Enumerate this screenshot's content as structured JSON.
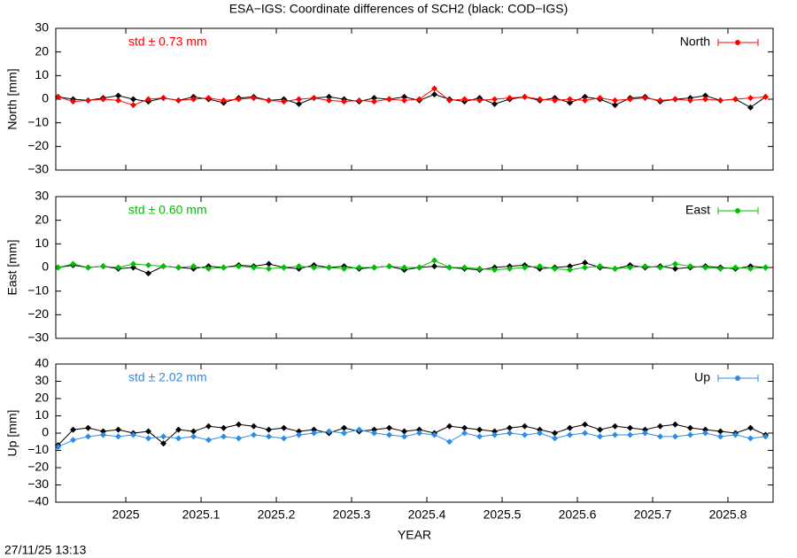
{
  "footer": "27/11/25 13:13",
  "chart_data": [
    {
      "type": "scatter",
      "title": "ESA−IGS: Coordinate differences of SCH2 (black: COD−IGS)",
      "ylabel": "North [mm]",
      "annotation": "std ± 0.73 mm",
      "legend": "upper right",
      "xlim": [
        2024.907,
        2025.86
      ],
      "ylim": [
        -30,
        30
      ],
      "yticks": [
        {
          "value": -30,
          "label": "−30"
        },
        {
          "value": -20,
          "label": "−20"
        },
        {
          "value": -10,
          "label": "−10"
        },
        0,
        10,
        20,
        30
      ],
      "x": [
        2024.91,
        2024.93,
        2024.95,
        2024.97,
        2024.99,
        2025.01,
        2025.03,
        2025.05,
        2025.07,
        2025.09,
        2025.11,
        2025.13,
        2025.15,
        2025.17,
        2025.19,
        2025.21,
        2025.23,
        2025.25,
        2025.27,
        2025.29,
        2025.31,
        2025.33,
        2025.35,
        2025.37,
        2025.39,
        2025.41,
        2025.43,
        2025.45,
        2025.47,
        2025.49,
        2025.51,
        2025.53,
        2025.55,
        2025.57,
        2025.59,
        2025.61,
        2025.63,
        2025.65,
        2025.67,
        2025.69,
        2025.71,
        2025.73,
        2025.75,
        2025.77,
        2025.79,
        2025.81,
        2025.83,
        2025.85
      ],
      "series": [
        {
          "color": "#000000",
          "values": [
            1,
            0,
            -0.5,
            0.5,
            1.5,
            0,
            -1,
            0.5,
            -0.5,
            1,
            0,
            -1.5,
            0.5,
            1,
            -0.5,
            0,
            -2,
            0.5,
            1,
            0,
            -1,
            0.5,
            0,
            1,
            -0.5,
            2,
            0,
            -1,
            0.5,
            -2,
            0,
            1,
            -0.5,
            0.5,
            -1.5,
            1,
            0,
            -2.5,
            0.5,
            1,
            -1,
            0,
            0.5,
            1.5,
            -0.5,
            0,
            -3.5,
            1
          ]
        },
        {
          "name": "North",
          "color": "#ff0000",
          "values": [
            1,
            -1,
            -0.5,
            0,
            -0.5,
            -2.5,
            0,
            0.5,
            -0.5,
            0,
            0.5,
            -0.5,
            0,
            0.5,
            -0.5,
            -1,
            0,
            0.5,
            -0.5,
            -1,
            -0.5,
            -1,
            0,
            -0.5,
            0,
            4.5,
            -0.5,
            0,
            -0.5,
            0,
            0.5,
            1,
            0,
            -0.5,
            0,
            -0.5,
            0.5,
            -0.5,
            0,
            0.5,
            -0.5,
            0,
            -0.5,
            0,
            -0.5,
            0,
            0.5,
            1
          ]
        }
      ]
    },
    {
      "type": "scatter",
      "ylabel": "East [mm]",
      "annotation": "std ± 0.60 mm",
      "legend": "upper right",
      "xlim": [
        2024.907,
        2025.86
      ],
      "ylim": [
        -30,
        30
      ],
      "yticks": [
        {
          "value": -30,
          "label": "−30"
        },
        {
          "value": -20,
          "label": "−20"
        },
        {
          "value": -10,
          "label": "−10"
        },
        0,
        10,
        20,
        30
      ],
      "x": [
        2024.91,
        2024.93,
        2024.95,
        2024.97,
        2024.99,
        2025.01,
        2025.03,
        2025.05,
        2025.07,
        2025.09,
        2025.11,
        2025.13,
        2025.15,
        2025.17,
        2025.19,
        2025.21,
        2025.23,
        2025.25,
        2025.27,
        2025.29,
        2025.31,
        2025.33,
        2025.35,
        2025.37,
        2025.39,
        2025.41,
        2025.43,
        2025.45,
        2025.47,
        2025.49,
        2025.51,
        2025.53,
        2025.55,
        2025.57,
        2025.59,
        2025.61,
        2025.63,
        2025.65,
        2025.67,
        2025.69,
        2025.71,
        2025.73,
        2025.75,
        2025.77,
        2025.79,
        2025.81,
        2025.83,
        2025.85
      ],
      "series": [
        {
          "color": "#000000",
          "values": [
            0,
            1,
            0,
            0.5,
            -0.5,
            0,
            -2.5,
            0.5,
            0,
            -0.5,
            0.5,
            0,
            1,
            0.5,
            1.5,
            0,
            -0.5,
            1,
            0,
            0.5,
            -0.5,
            0,
            0.5,
            -1,
            0,
            0.5,
            0,
            -0.5,
            -1,
            0,
            0.5,
            1,
            -0.5,
            0,
            0.5,
            2,
            0,
            -0.5,
            1,
            0,
            0.5,
            -0.5,
            0,
            0.5,
            0,
            -0.5,
            0.5,
            0
          ]
        },
        {
          "name": "East",
          "color": "#00c000",
          "values": [
            0,
            1.5,
            0,
            0.5,
            0,
            1.5,
            1,
            0.5,
            0,
            0.5,
            -0.5,
            0,
            0.5,
            0,
            -0.5,
            0,
            0.5,
            0,
            0,
            -0.5,
            0,
            0,
            0.5,
            0,
            0,
            3,
            0,
            0,
            -0.5,
            -1,
            -0.5,
            0,
            0.5,
            -0.5,
            -1,
            0,
            0.5,
            -0.5,
            0,
            0.5,
            0,
            1.5,
            0.5,
            0,
            -0.5,
            0,
            -0.5,
            0
          ]
        }
      ]
    },
    {
      "type": "scatter",
      "ylabel": "Up [mm]",
      "annotation": "std ± 2.02 mm",
      "legend": "upper right",
      "xlabel": "YEAR",
      "xlim": [
        2024.907,
        2025.86
      ],
      "ylim": [
        -40,
        40
      ],
      "xticks": [
        2025,
        2025.1,
        2025.2,
        2025.3,
        2025.4,
        2025.5,
        2025.6,
        2025.7,
        2025.8
      ],
      "yticks": [
        {
          "value": -40,
          "label": "−40"
        },
        {
          "value": -30,
          "label": "−30"
        },
        {
          "value": -20,
          "label": "−20"
        },
        {
          "value": -10,
          "label": "−10"
        },
        0,
        10,
        20,
        30,
        40
      ],
      "x": [
        2024.91,
        2024.93,
        2024.95,
        2024.97,
        2024.99,
        2025.01,
        2025.03,
        2025.05,
        2025.07,
        2025.09,
        2025.11,
        2025.13,
        2025.15,
        2025.17,
        2025.19,
        2025.21,
        2025.23,
        2025.25,
        2025.27,
        2025.29,
        2025.31,
        2025.33,
        2025.35,
        2025.37,
        2025.39,
        2025.41,
        2025.43,
        2025.45,
        2025.47,
        2025.49,
        2025.51,
        2025.53,
        2025.55,
        2025.57,
        2025.59,
        2025.61,
        2025.63,
        2025.65,
        2025.67,
        2025.69,
        2025.71,
        2025.73,
        2025.75,
        2025.77,
        2025.79,
        2025.81,
        2025.83,
        2025.85
      ],
      "series": [
        {
          "color": "#000000",
          "values": [
            -7,
            2,
            3,
            1,
            2,
            0,
            1,
            -6,
            2,
            1,
            4,
            3,
            5,
            4,
            2,
            3,
            1,
            2,
            0,
            3,
            1,
            2,
            3,
            1,
            2,
            0,
            4,
            3,
            2,
            1,
            3,
            4,
            2,
            0,
            3,
            5,
            2,
            4,
            3,
            2,
            4,
            5,
            3,
            2,
            1,
            0,
            3,
            -1
          ]
        },
        {
          "name": "Up",
          "color": "#2a8ce8",
          "values": [
            -8,
            -4,
            -2,
            -1,
            -2,
            -1,
            -3,
            -2,
            -3,
            -2,
            -4,
            -2,
            -3,
            -1,
            -2,
            -3,
            -1,
            0,
            1,
            0,
            2,
            0,
            -1,
            -2,
            0,
            -1,
            -5,
            0,
            -2,
            -1,
            0,
            -1,
            0,
            -3,
            -1,
            0,
            -2,
            -1,
            -1,
            0,
            -2,
            -2,
            -1,
            0,
            -2,
            -1,
            -3,
            -2
          ]
        }
      ]
    }
  ]
}
